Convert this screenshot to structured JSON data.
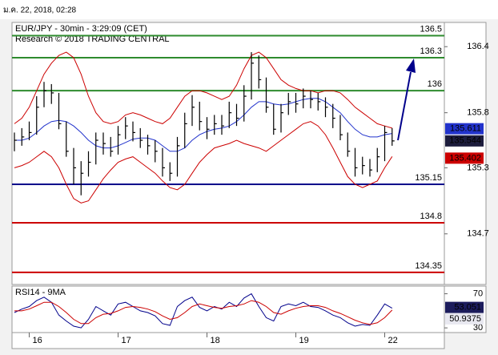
{
  "timestamp": "ม.ค. 22, 2018, 02:28",
  "chart_data": [
    {
      "type": "ohlc",
      "title": "EUR/JPY - 30min - 3:29:09 (CET)",
      "subtitle": "Research © 2018 TRADING CENTRAL",
      "categories": [
        null,
        null,
        "16",
        null,
        null,
        null,
        null,
        null,
        null,
        null,
        null,
        null,
        null,
        null,
        "17",
        null,
        null,
        null,
        null,
        null,
        null,
        null,
        null,
        null,
        null,
        null,
        "18",
        null,
        null,
        null,
        null,
        null,
        null,
        null,
        null,
        null,
        null,
        null,
        "19",
        null,
        null,
        null,
        null,
        null,
        null,
        null,
        null,
        null,
        null,
        null,
        "22",
        null
      ],
      "high": [
        135.62,
        135.66,
        135.72,
        135.95,
        136.08,
        136.06,
        135.98,
        135.72,
        135.48,
        135.36,
        135.45,
        135.62,
        135.62,
        135.58,
        135.68,
        135.76,
        135.72,
        135.66,
        135.6,
        135.55,
        135.48,
        135.35,
        135.58,
        135.8,
        135.96,
        135.9,
        135.76,
        135.78,
        135.78,
        135.9,
        135.88,
        136.05,
        136.35,
        136.32,
        136.12,
        135.88,
        135.88,
        135.98,
        135.98,
        136.02,
        136.0,
        135.98,
        135.94,
        135.88,
        135.78,
        135.62,
        135.48,
        135.4,
        135.38,
        135.48,
        135.68,
        135.66
      ],
      "low": [
        135.45,
        135.5,
        135.55,
        135.6,
        135.85,
        135.88,
        135.65,
        135.4,
        135.15,
        135.05,
        135.22,
        135.33,
        135.42,
        135.4,
        135.42,
        135.56,
        135.54,
        135.48,
        135.42,
        135.35,
        135.22,
        135.18,
        135.22,
        135.48,
        135.68,
        135.64,
        135.56,
        135.6,
        135.6,
        135.66,
        135.68,
        135.72,
        135.92,
        136.02,
        135.8,
        135.6,
        135.62,
        135.78,
        135.8,
        135.84,
        135.84,
        135.82,
        135.76,
        135.66,
        135.55,
        135.4,
        135.22,
        135.24,
        135.22,
        135.26,
        135.36,
        135.5
      ],
      "close": [
        135.55,
        135.58,
        135.62,
        135.85,
        136.0,
        135.98,
        135.7,
        135.45,
        135.3,
        135.25,
        135.35,
        135.55,
        135.52,
        135.45,
        135.6,
        135.68,
        135.62,
        135.55,
        135.5,
        135.45,
        135.3,
        135.25,
        135.5,
        135.7,
        135.85,
        135.72,
        135.65,
        135.7,
        135.68,
        135.8,
        135.75,
        135.95,
        136.25,
        136.1,
        135.85,
        135.65,
        135.8,
        135.9,
        135.88,
        135.95,
        135.92,
        135.9,
        135.85,
        135.75,
        135.6,
        135.45,
        135.3,
        135.32,
        135.28,
        135.4,
        135.62,
        135.544
      ],
      "color": "#000000",
      "overlays": [
        {
          "color": "#cc0000",
          "values": [
            135.7,
            135.75,
            135.85,
            136.0,
            136.15,
            136.25,
            136.32,
            136.35,
            136.3,
            136.15,
            135.95,
            135.8,
            135.72,
            135.7,
            135.72,
            135.78,
            135.8,
            135.78,
            135.75,
            135.72,
            135.7,
            135.75,
            135.85,
            135.95,
            136.0,
            136.0,
            135.98,
            135.95,
            135.92,
            135.95,
            136.05,
            136.2,
            136.32,
            136.35,
            136.3,
            136.2,
            136.1,
            136.05,
            136.02,
            136.0,
            136.0,
            135.98,
            136.0,
            136.0,
            135.98,
            135.92,
            135.85,
            135.8,
            135.75,
            135.7,
            135.68,
            135.66
          ]
        },
        {
          "color": "#cc0000",
          "values": [
            135.3,
            135.32,
            135.35,
            135.4,
            135.45,
            135.4,
            135.3,
            135.15,
            135.02,
            134.98,
            135.0,
            135.1,
            135.2,
            135.28,
            135.35,
            135.38,
            135.4,
            135.35,
            135.3,
            135.25,
            135.18,
            135.12,
            135.1,
            135.15,
            135.25,
            135.35,
            135.42,
            135.48,
            135.5,
            135.52,
            135.55,
            135.52,
            135.5,
            135.48,
            135.45,
            135.5,
            135.55,
            135.6,
            135.65,
            135.7,
            135.72,
            135.68,
            135.6,
            135.48,
            135.35,
            135.22,
            135.15,
            135.12,
            135.15,
            135.18,
            135.3,
            135.402
          ]
        },
        {
          "color": "#2233cc",
          "values": [
            135.55,
            135.55,
            135.57,
            135.62,
            135.68,
            135.72,
            135.73,
            135.72,
            135.68,
            135.62,
            135.55,
            135.5,
            135.48,
            135.48,
            135.5,
            135.53,
            135.56,
            135.57,
            135.57,
            135.55,
            135.5,
            135.45,
            135.45,
            135.48,
            135.55,
            135.6,
            135.63,
            135.65,
            135.66,
            135.68,
            135.72,
            135.78,
            135.85,
            135.9,
            135.9,
            135.88,
            135.87,
            135.88,
            135.9,
            135.92,
            135.93,
            135.93,
            135.9,
            135.85,
            135.8,
            135.72,
            135.65,
            135.6,
            135.58,
            135.58,
            135.6,
            135.611
          ]
        }
      ],
      "levels": [
        {
          "value": 136.5,
          "color": "#2e8b2e"
        },
        {
          "value": 136.3,
          "color": "#2e8b2e"
        },
        {
          "value": 136,
          "color": "#2e8b2e"
        },
        {
          "value": 135.15,
          "color": "#00008b"
        },
        {
          "value": 134.8,
          "color": "#cc0000"
        },
        {
          "value": 134.35,
          "color": "#cc0000"
        }
      ],
      "ylim": [
        134.24,
        136.62
      ],
      "yticks": [
        136.4,
        135.8,
        135.3,
        134.7
      ]
    },
    {
      "type": "line",
      "title": "RSI14 - 9MA",
      "series": [
        {
          "color": "#00008b",
          "values": [
            48,
            52,
            55,
            62,
            66,
            60,
            45,
            38,
            32,
            30,
            40,
            55,
            50,
            45,
            58,
            60,
            55,
            50,
            48,
            44,
            35,
            33,
            55,
            62,
            66,
            54,
            50,
            55,
            52,
            60,
            55,
            65,
            70,
            55,
            42,
            38,
            55,
            58,
            56,
            60,
            55,
            54,
            50,
            45,
            42,
            36,
            32,
            34,
            33,
            45,
            58,
            53.051
          ]
        },
        {
          "color": "#cc0000",
          "values": [
            50,
            50,
            52,
            56,
            60,
            60,
            55,
            48,
            40,
            35,
            35,
            42,
            46,
            47,
            50,
            54,
            55,
            54,
            52,
            49,
            44,
            40,
            42,
            48,
            55,
            58,
            56,
            54,
            53,
            55,
            56,
            58,
            62,
            60,
            55,
            48,
            46,
            50,
            53,
            55,
            56,
            56,
            54,
            50,
            47,
            43,
            39,
            36,
            34,
            36,
            42,
            50.9375
          ]
        }
      ],
      "ylim": [
        24.5,
        79
      ],
      "yticks": [
        70,
        30
      ]
    }
  ]
}
